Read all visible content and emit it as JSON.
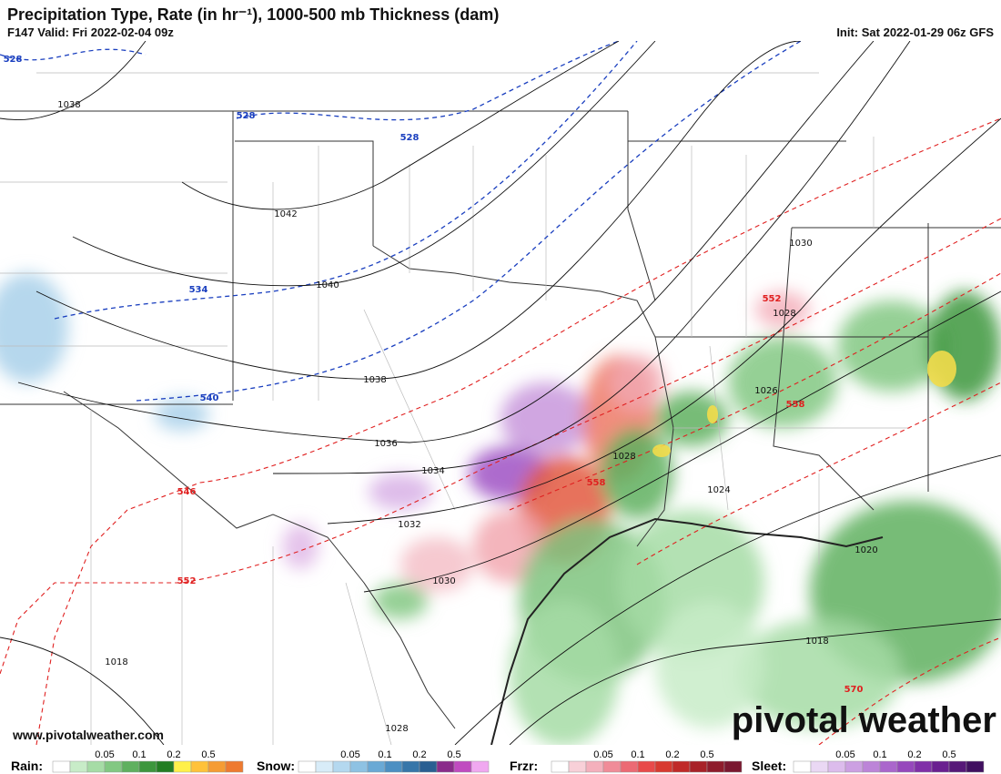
{
  "header": {
    "title": "Precipitation Type, Rate (in hr⁻¹), 1000-500 mb Thickness (dam)",
    "valid": "F147 Valid: Fri 2022-02-04 09z",
    "init": "Init: Sat 2022-01-29 06z GFS"
  },
  "map": {
    "thickness_labels": [
      528,
      528,
      528,
      534,
      540,
      546,
      552,
      552,
      558,
      558,
      570
    ],
    "pressure_labels": [
      1038,
      1042,
      1040,
      1038,
      1036,
      1034,
      1032,
      1030,
      1028,
      1028,
      1030,
      1026,
      1024,
      1020,
      1018,
      1018,
      1028
    ],
    "website": "www.pivotalweather.com",
    "logo": "pivotal weather"
  },
  "legend": [
    {
      "name": "Rain:",
      "ticks": [
        "0.05",
        "0.1",
        "0.2",
        "0.5"
      ],
      "colors": [
        "#ffffff",
        "#c8ecc8",
        "#a6dca6",
        "#82c882",
        "#5fb05f",
        "#3d963d",
        "#237d23",
        "#fff04a",
        "#ffc23a",
        "#f59c34",
        "#ee7a30"
      ]
    },
    {
      "name": "Snow:",
      "ticks": [
        "0.05",
        "0.1",
        "0.2",
        "0.5"
      ],
      "colors": [
        "#ffffff",
        "#d8ecf8",
        "#b4d8ef",
        "#8ec2e3",
        "#6aa9d5",
        "#4c8fc2",
        "#3776a9",
        "#2a5f92",
        "#8a2c8a",
        "#c04bc0",
        "#f0a8f0"
      ]
    },
    {
      "name": "Frzr:",
      "ticks": [
        "0.05",
        "0.1",
        "0.2",
        "0.5"
      ],
      "colors": [
        "#ffffff",
        "#f8d0d8",
        "#f4b0bc",
        "#f08c98",
        "#ec6a74",
        "#e84a4a",
        "#d83a30",
        "#c02a28",
        "#a82228",
        "#8e1c2c",
        "#7a1830"
      ]
    },
    {
      "name": "Sleet:",
      "ticks": [
        "0.05",
        "0.1",
        "0.2",
        "0.5"
      ],
      "colors": [
        "#ffffff",
        "#ead8f4",
        "#dcbcec",
        "#cca0e2",
        "#bc84d8",
        "#aa66cc",
        "#9648bc",
        "#8030a8",
        "#6a2090",
        "#561878",
        "#401060"
      ]
    }
  ]
}
